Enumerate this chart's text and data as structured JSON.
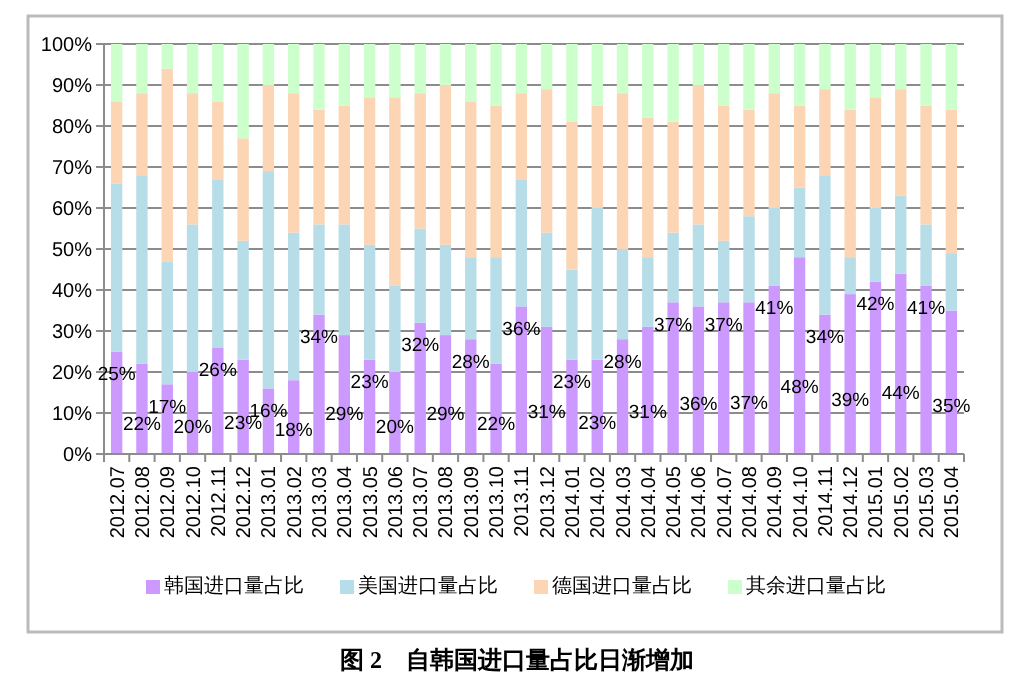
{
  "chart_data": {
    "type": "bar",
    "stacked": true,
    "title": "图 2　自韩国进口量占比日渐增加",
    "categories": [
      "2012.07",
      "2012.08",
      "2012.09",
      "2012.10",
      "2012.11",
      "2012.12",
      "2013.01",
      "2013.02",
      "2013.03",
      "2013.04",
      "2013.05",
      "2013.06",
      "2013.07",
      "2013.08",
      "2013.09",
      "2013.10",
      "2013.11",
      "2013.12",
      "2014.01",
      "2014.02",
      "2014.03",
      "2014.04",
      "2014.05",
      "2014.06",
      "2014.07",
      "2014.08",
      "2014.09",
      "2014.10",
      "2014.11",
      "2014.12",
      "2015.01",
      "2015.02",
      "2015.03",
      "2015.04"
    ],
    "series": [
      {
        "name": "韩国进口量占比",
        "color": "#cc99ff",
        "values": [
          25,
          22,
          17,
          20,
          26,
          23,
          16,
          18,
          34,
          29,
          23,
          20,
          32,
          29,
          28,
          22,
          36,
          31,
          23,
          23,
          28,
          31,
          37,
          36,
          37,
          37,
          41,
          48,
          34,
          39,
          42,
          44,
          41,
          35
        ],
        "value_labels": [
          "25%",
          "22%",
          "17%",
          "20%",
          "26%",
          "23%",
          "16%",
          "18%",
          "34%",
          "29%",
          "23%",
          "20%",
          "32%",
          "29%",
          "28%",
          "22%",
          "36%",
          "31%",
          "23%",
          "23%",
          "28%",
          "31%",
          "37%",
          "36%",
          "37%",
          "37%",
          "41%",
          "48%",
          "34%",
          "39%",
          "42%",
          "44%",
          "41%",
          "35%"
        ]
      },
      {
        "name": "美国进口量占比",
        "color": "#b7dde8",
        "values": [
          41,
          46,
          30,
          36,
          41,
          29,
          53,
          36,
          22,
          27,
          28,
          21,
          23,
          22,
          20,
          26,
          31,
          23,
          22,
          37,
          22,
          17,
          17,
          20,
          15,
          21,
          19,
          17,
          34,
          9,
          18,
          19,
          15,
          14
        ]
      },
      {
        "name": "德国进口量占比",
        "color": "#fcd5b5",
        "values": [
          20,
          20,
          47,
          32,
          19,
          25,
          21,
          34,
          28,
          29,
          36,
          46,
          33,
          39,
          38,
          37,
          21,
          35,
          36,
          25,
          38,
          34,
          27,
          34,
          33,
          26,
          28,
          20,
          21,
          36,
          27,
          26,
          29,
          35
        ]
      },
      {
        "name": "其余进口量占比",
        "color": "#ccffcc",
        "values": [
          14,
          12,
          6,
          12,
          14,
          23,
          10,
          12,
          16,
          15,
          13,
          13,
          12,
          10,
          14,
          15,
          12,
          11,
          19,
          15,
          12,
          18,
          19,
          10,
          15,
          16,
          12,
          15,
          11,
          16,
          13,
          11,
          15,
          16
        ]
      }
    ],
    "ylim": [
      0,
      100
    ],
    "yticks": [
      {
        "value": 0,
        "label": "0%"
      },
      {
        "value": 10,
        "label": "10%"
      },
      {
        "value": 20,
        "label": "20%"
      },
      {
        "value": 30,
        "label": "30%"
      },
      {
        "value": 40,
        "label": "40%"
      },
      {
        "value": 50,
        "label": "50%"
      },
      {
        "value": 60,
        "label": "60%"
      },
      {
        "value": 70,
        "label": "70%"
      },
      {
        "value": 80,
        "label": "80%"
      },
      {
        "value": 90,
        "label": "90%"
      },
      {
        "value": 100,
        "label": "100%"
      }
    ],
    "grid": "y",
    "legend": "bottom"
  }
}
